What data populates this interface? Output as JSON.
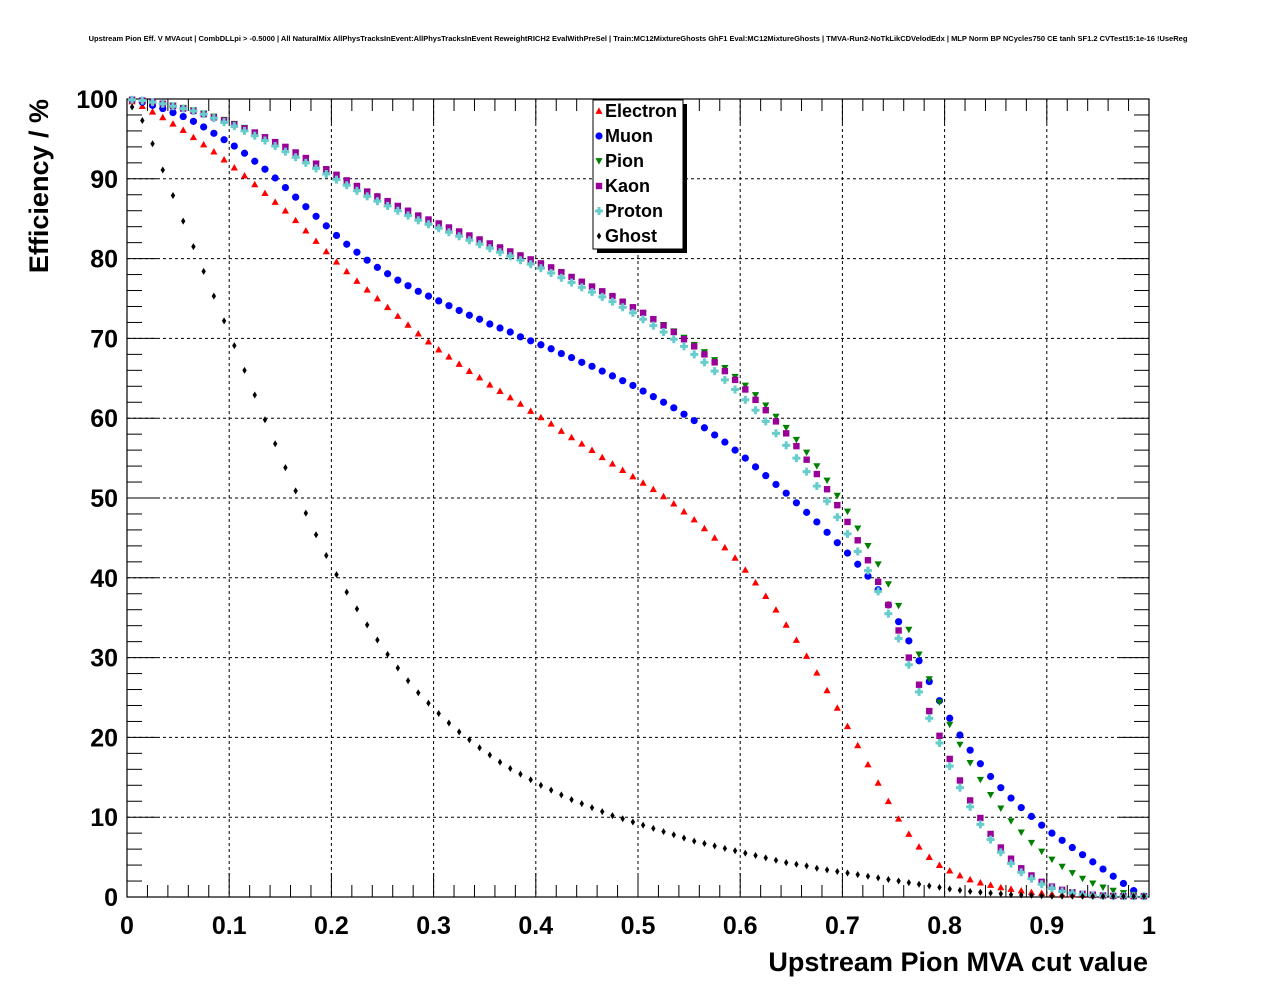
{
  "chart_data": {
    "type": "scatter",
    "title": "Upstream Pion Eff. V MVAcut | CombDLLpi > -0.5000 | All NaturalMix AllPhysTracksInEvent:AllPhysTracksInEvent ReweightRICH2 EvalWithPreSel | Train:MC12MixtureGhosts GhF1 Eval:MC12MixtureGhosts | TMVA-Run2-NoTkLikCDVelodEdx | MLP Norm BP NCycles750 CE tanh SF1.2 CVTest15:1e-16 !UseReg",
    "xlabel": "Upstream Pion MVA cut value",
    "ylabel": "Efficiency / %",
    "xlim": [
      0,
      1
    ],
    "ylim": [
      0,
      100
    ],
    "x_ticks": [
      "0",
      "0.1",
      "0.2",
      "0.3",
      "0.4",
      "0.5",
      "0.6",
      "0.7",
      "0.8",
      "0.9",
      "1"
    ],
    "y_ticks": [
      "0",
      "10",
      "20",
      "30",
      "40",
      "50",
      "60",
      "70",
      "80",
      "90",
      "100"
    ],
    "grid": true,
    "legend_position": "top-center",
    "x": [
      0.005,
      0.015,
      0.025,
      0.035,
      0.045,
      0.055,
      0.065,
      0.075,
      0.085,
      0.095,
      0.105,
      0.115,
      0.125,
      0.135,
      0.145,
      0.155,
      0.165,
      0.175,
      0.185,
      0.195,
      0.205,
      0.215,
      0.225,
      0.235,
      0.245,
      0.255,
      0.265,
      0.275,
      0.285,
      0.295,
      0.305,
      0.315,
      0.325,
      0.335,
      0.345,
      0.355,
      0.365,
      0.375,
      0.385,
      0.395,
      0.405,
      0.415,
      0.425,
      0.435,
      0.445,
      0.455,
      0.465,
      0.475,
      0.485,
      0.495,
      0.505,
      0.515,
      0.525,
      0.535,
      0.545,
      0.555,
      0.565,
      0.575,
      0.585,
      0.595,
      0.605,
      0.615,
      0.625,
      0.635,
      0.645,
      0.655,
      0.665,
      0.675,
      0.685,
      0.695,
      0.705,
      0.715,
      0.725,
      0.735,
      0.745,
      0.755,
      0.765,
      0.775,
      0.785,
      0.795,
      0.805,
      0.815,
      0.825,
      0.835,
      0.845,
      0.855,
      0.865,
      0.875,
      0.885,
      0.895,
      0.905,
      0.915,
      0.925,
      0.935,
      0.945,
      0.955,
      0.965,
      0.975,
      0.985,
      0.995
    ],
    "series": [
      {
        "name": "Electron",
        "color": "#ff0000",
        "marker": "triangle-up",
        "values": [
          99.7,
          99.1,
          98.4,
          97.7,
          96.9,
          96.1,
          95.2,
          94.3,
          93.4,
          92.4,
          91.4,
          90.4,
          89.3,
          88.2,
          87.1,
          86.0,
          84.8,
          83.5,
          82.2,
          80.9,
          79.6,
          78.4,
          77.2,
          76.1,
          75.0,
          73.9,
          72.8,
          71.7,
          70.6,
          69.6,
          68.6,
          67.7,
          66.8,
          65.9,
          65.1,
          64.2,
          63.4,
          62.6,
          61.8,
          60.9,
          60.1,
          59.3,
          58.4,
          57.6,
          56.8,
          56.0,
          55.1,
          54.3,
          53.5,
          52.7,
          51.9,
          51.1,
          50.2,
          49.3,
          48.3,
          47.3,
          46.2,
          45.0,
          43.8,
          42.5,
          41.0,
          39.4,
          37.7,
          36.0,
          34.1,
          32.2,
          30.2,
          28.1,
          25.9,
          23.7,
          21.4,
          19.0,
          16.6,
          14.3,
          12.0,
          9.8,
          7.9,
          6.3,
          5.0,
          4.0,
          3.3,
          2.7,
          2.2,
          1.8,
          1.5,
          1.2,
          1.0,
          0.8,
          0.6,
          0.5,
          0.4,
          0.35,
          0.3,
          0.25,
          0.2,
          0.15,
          0.1,
          0.1,
          0.1,
          0.1
        ]
      },
      {
        "name": "Muon",
        "color": "#0000ff",
        "marker": "circle",
        "values": [
          99.9,
          99.6,
          99.2,
          98.8,
          98.3,
          97.8,
          97.2,
          96.5,
          95.7,
          94.9,
          94.1,
          93.2,
          92.2,
          91.2,
          90.1,
          88.9,
          87.7,
          86.5,
          85.3,
          84.1,
          82.9,
          81.8,
          80.8,
          79.8,
          78.9,
          78.1,
          77.3,
          76.6,
          75.9,
          75.3,
          74.7,
          74.1,
          73.5,
          72.9,
          72.4,
          71.8,
          71.3,
          70.8,
          70.2,
          69.7,
          69.2,
          68.7,
          68.1,
          67.6,
          67.0,
          66.5,
          65.9,
          65.3,
          64.7,
          64.1,
          63.4,
          62.7,
          62.0,
          61.3,
          60.5,
          59.7,
          58.8,
          57.9,
          57.0,
          56.0,
          55.0,
          53.9,
          52.8,
          51.7,
          50.6,
          49.4,
          48.2,
          47.0,
          45.7,
          44.4,
          43.1,
          41.7,
          40.2,
          38.5,
          36.6,
          34.5,
          32.1,
          29.6,
          27.0,
          24.6,
          22.4,
          20.3,
          18.4,
          16.7,
          15.1,
          13.7,
          12.4,
          11.2,
          10.1,
          9.0,
          8.0,
          7.1,
          6.2,
          5.3,
          4.4,
          3.5,
          2.6,
          1.7,
          0.8,
          0.1
        ]
      },
      {
        "name": "Pion",
        "color": "#008000",
        "marker": "triangle-down",
        "values": [
          99.9,
          99.8,
          99.6,
          99.4,
          99.2,
          98.9,
          98.6,
          98.2,
          97.8,
          97.4,
          96.9,
          96.4,
          95.8,
          95.2,
          94.6,
          93.9,
          93.2,
          92.5,
          91.8,
          91.1,
          90.4,
          89.7,
          89.0,
          88.3,
          87.6,
          87.0,
          86.4,
          85.8,
          85.2,
          84.7,
          84.2,
          83.7,
          83.2,
          82.7,
          82.2,
          81.7,
          81.2,
          80.7,
          80.2,
          79.7,
          79.2,
          78.7,
          78.1,
          77.5,
          76.9,
          76.3,
          75.7,
          75.1,
          74.5,
          73.8,
          73.1,
          72.4,
          71.7,
          70.9,
          70.1,
          69.2,
          68.3,
          67.3,
          66.3,
          65.2,
          64.1,
          62.9,
          61.6,
          60.2,
          58.8,
          57.3,
          55.7,
          54.0,
          52.2,
          50.3,
          48.3,
          46.2,
          44.0,
          41.7,
          39.2,
          36.5,
          33.5,
          30.4,
          27.3,
          24.4,
          21.6,
          19.1,
          16.8,
          14.7,
          12.8,
          11.1,
          9.5,
          8.1,
          6.8,
          5.7,
          4.7,
          3.8,
          3.0,
          2.3,
          1.7,
          1.2,
          0.8,
          0.5,
          0.3,
          0.1
        ]
      },
      {
        "name": "Kaon",
        "color": "#990099",
        "marker": "square",
        "values": [
          99.9,
          99.8,
          99.6,
          99.4,
          99.1,
          98.8,
          98.5,
          98.1,
          97.7,
          97.3,
          96.8,
          96.3,
          95.8,
          95.2,
          94.6,
          94.0,
          93.3,
          92.6,
          91.9,
          91.2,
          90.5,
          89.8,
          89.1,
          88.4,
          87.8,
          87.2,
          86.6,
          86.0,
          85.4,
          84.9,
          84.4,
          83.9,
          83.4,
          82.9,
          82.4,
          81.9,
          81.4,
          80.9,
          80.4,
          79.9,
          79.4,
          78.9,
          78.3,
          77.7,
          77.1,
          76.5,
          75.9,
          75.3,
          74.6,
          73.9,
          73.2,
          72.4,
          71.6,
          70.8,
          69.9,
          69.0,
          68.0,
          67.0,
          65.9,
          64.8,
          63.6,
          62.3,
          61.0,
          59.6,
          58.1,
          56.5,
          54.8,
          53.0,
          51.1,
          49.1,
          47.0,
          44.7,
          42.2,
          39.5,
          36.6,
          33.4,
          30.0,
          26.6,
          23.3,
          20.2,
          17.3,
          14.6,
          12.1,
          9.9,
          7.9,
          6.2,
          4.8,
          3.6,
          2.7,
          1.9,
          1.3,
          0.9,
          0.6,
          0.4,
          0.3,
          0.2,
          0.15,
          0.1,
          0.1,
          0.1
        ]
      },
      {
        "name": "Proton",
        "color": "#66cccc",
        "marker": "cross",
        "values": [
          99.9,
          99.8,
          99.6,
          99.4,
          99.1,
          98.8,
          98.5,
          98.1,
          97.6,
          97.1,
          96.6,
          96.0,
          95.4,
          94.8,
          94.1,
          93.4,
          92.7,
          92.0,
          91.3,
          90.6,
          89.9,
          89.2,
          88.5,
          87.8,
          87.2,
          86.6,
          86.0,
          85.4,
          84.8,
          84.3,
          83.8,
          83.3,
          82.8,
          82.3,
          81.8,
          81.3,
          80.8,
          80.3,
          79.8,
          79.3,
          78.8,
          78.2,
          77.6,
          77.0,
          76.4,
          75.8,
          75.2,
          74.6,
          73.9,
          73.2,
          72.4,
          71.6,
          70.8,
          69.9,
          69.0,
          68.0,
          67.0,
          65.9,
          64.8,
          63.6,
          62.3,
          61.0,
          59.6,
          58.1,
          56.6,
          55.0,
          53.3,
          51.5,
          49.6,
          47.6,
          45.5,
          43.3,
          40.9,
          38.3,
          35.5,
          32.4,
          29.1,
          25.7,
          22.4,
          19.3,
          16.4,
          13.7,
          11.3,
          9.1,
          7.2,
          5.6,
          4.2,
          3.1,
          2.3,
          1.6,
          1.1,
          0.7,
          0.5,
          0.3,
          0.2,
          0.15,
          0.1,
          0.1,
          0.1,
          0.1
        ]
      },
      {
        "name": "Ghost",
        "color": "#000000",
        "marker": "star",
        "values": [
          99.0,
          97.3,
          94.4,
          91.1,
          87.9,
          84.7,
          81.5,
          78.4,
          75.3,
          72.2,
          69.1,
          66.0,
          62.9,
          59.8,
          56.8,
          53.8,
          50.9,
          48.1,
          45.4,
          42.8,
          40.4,
          38.2,
          36.1,
          34.1,
          32.2,
          30.4,
          28.7,
          27.1,
          25.6,
          24.3,
          23.0,
          21.8,
          20.7,
          19.7,
          18.7,
          17.8,
          16.9,
          16.1,
          15.4,
          14.7,
          14.0,
          13.4,
          12.8,
          12.2,
          11.7,
          11.2,
          10.7,
          10.2,
          9.8,
          9.4,
          9.0,
          8.6,
          8.2,
          7.8,
          7.4,
          7.0,
          6.7,
          6.4,
          6.1,
          5.8,
          5.5,
          5.2,
          4.9,
          4.6,
          4.3,
          4.1,
          3.9,
          3.6,
          3.4,
          3.2,
          3.0,
          2.8,
          2.6,
          2.4,
          2.2,
          2.0,
          1.8,
          1.6,
          1.4,
          1.2,
          1.0,
          0.85,
          0.7,
          0.6,
          0.5,
          0.4,
          0.3,
          0.25,
          0.2,
          0.15,
          0.1,
          0.1,
          0.1,
          0.1,
          0.1,
          0.1,
          0.1,
          0.1,
          0.1,
          0.1
        ]
      }
    ]
  }
}
